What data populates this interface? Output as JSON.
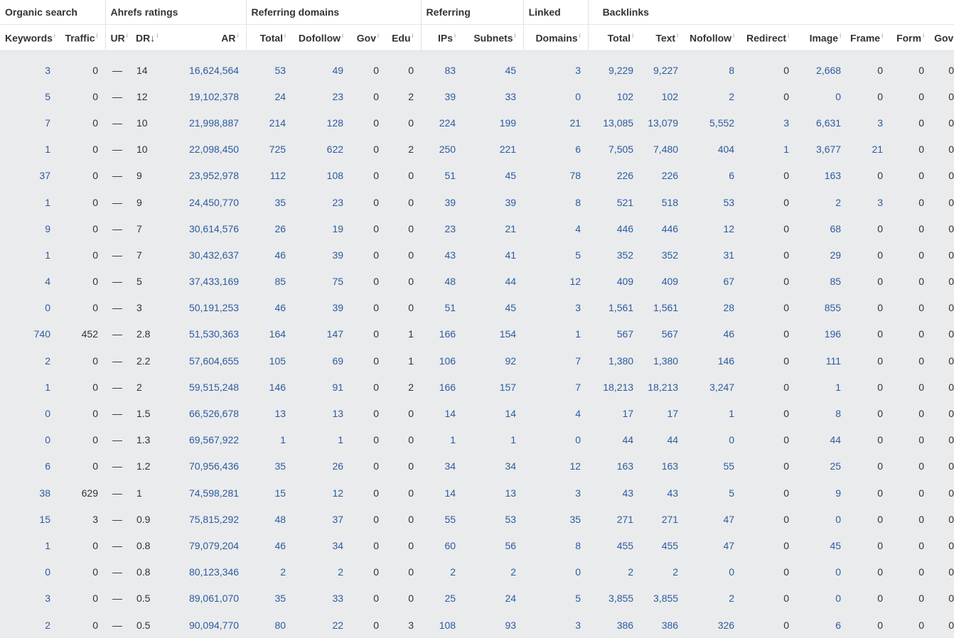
{
  "groups": {
    "organic": "Organic search",
    "ahrefs": "Ahrefs ratings",
    "refdomains": "Referring domains",
    "referring": "Referring",
    "linked": "Linked",
    "backlinks": "Backlinks"
  },
  "columns": {
    "keywords": "Keywords",
    "traffic": "Traffic",
    "ur": "UR",
    "dr": "DR",
    "dr_sort": "↓",
    "ar": "AR",
    "rd_total": "Total",
    "rd_dofollow": "Dofollow",
    "rd_gov": "Gov",
    "rd_edu": "Edu",
    "ips": "IPs",
    "subnets": "Subnets",
    "linked_domains": "Domains",
    "bl_total": "Total",
    "bl_text": "Text",
    "bl_nofollow": "Nofollow",
    "bl_redirect": "Redirect",
    "bl_image": "Image",
    "bl_frame": "Frame",
    "bl_form": "Form",
    "bl_gov": "Gov"
  },
  "info_glyph": "i",
  "rows": [
    {
      "keywords": "3",
      "traffic": "0",
      "ur": "—",
      "dr": "14",
      "ar": "16,624,564",
      "rd_total": "53",
      "rd_dofollow": "49",
      "rd_gov": "0",
      "rd_edu": "0",
      "ips": "83",
      "subnets": "45",
      "linked_domains": "3",
      "bl_total": "9,229",
      "bl_text": "9,227",
      "bl_nofollow": "8",
      "bl_redirect": "0",
      "bl_image": "2,668",
      "bl_frame": "0",
      "bl_form": "0",
      "bl_gov": "0"
    },
    {
      "keywords": "5",
      "traffic": "0",
      "ur": "—",
      "dr": "12",
      "ar": "19,102,378",
      "rd_total": "24",
      "rd_dofollow": "23",
      "rd_gov": "0",
      "rd_edu": "2",
      "ips": "39",
      "subnets": "33",
      "linked_domains": "0",
      "bl_total": "102",
      "bl_text": "102",
      "bl_nofollow": "2",
      "bl_redirect": "0",
      "bl_image": "0",
      "bl_frame": "0",
      "bl_form": "0",
      "bl_gov": "0"
    },
    {
      "keywords": "7",
      "traffic": "0",
      "ur": "—",
      "dr": "10",
      "ar": "21,998,887",
      "rd_total": "214",
      "rd_dofollow": "128",
      "rd_gov": "0",
      "rd_edu": "0",
      "ips": "224",
      "subnets": "199",
      "linked_domains": "21",
      "bl_total": "13,085",
      "bl_text": "13,079",
      "bl_nofollow": "5,552",
      "bl_redirect": "3",
      "bl_image": "6,631",
      "bl_frame": "3",
      "bl_form": "0",
      "bl_gov": "0"
    },
    {
      "keywords": "1",
      "traffic": "0",
      "ur": "—",
      "dr": "10",
      "ar": "22,098,450",
      "rd_total": "725",
      "rd_dofollow": "622",
      "rd_gov": "0",
      "rd_edu": "2",
      "ips": "250",
      "subnets": "221",
      "linked_domains": "6",
      "bl_total": "7,505",
      "bl_text": "7,480",
      "bl_nofollow": "404",
      "bl_redirect": "1",
      "bl_image": "3,677",
      "bl_frame": "21",
      "bl_form": "0",
      "bl_gov": "0"
    },
    {
      "keywords": "37",
      "traffic": "0",
      "ur": "—",
      "dr": "9",
      "ar": "23,952,978",
      "rd_total": "112",
      "rd_dofollow": "108",
      "rd_gov": "0",
      "rd_edu": "0",
      "ips": "51",
      "subnets": "45",
      "linked_domains": "78",
      "bl_total": "226",
      "bl_text": "226",
      "bl_nofollow": "6",
      "bl_redirect": "0",
      "bl_image": "163",
      "bl_frame": "0",
      "bl_form": "0",
      "bl_gov": "0"
    },
    {
      "keywords": "1",
      "traffic": "0",
      "ur": "—",
      "dr": "9",
      "ar": "24,450,770",
      "rd_total": "35",
      "rd_dofollow": "23",
      "rd_gov": "0",
      "rd_edu": "0",
      "ips": "39",
      "subnets": "39",
      "linked_domains": "8",
      "bl_total": "521",
      "bl_text": "518",
      "bl_nofollow": "53",
      "bl_redirect": "0",
      "bl_image": "2",
      "bl_frame": "3",
      "bl_form": "0",
      "bl_gov": "0"
    },
    {
      "keywords": "9",
      "traffic": "0",
      "ur": "—",
      "dr": "7",
      "ar": "30,614,576",
      "rd_total": "26",
      "rd_dofollow": "19",
      "rd_gov": "0",
      "rd_edu": "0",
      "ips": "23",
      "subnets": "21",
      "linked_domains": "4",
      "bl_total": "446",
      "bl_text": "446",
      "bl_nofollow": "12",
      "bl_redirect": "0",
      "bl_image": "68",
      "bl_frame": "0",
      "bl_form": "0",
      "bl_gov": "0"
    },
    {
      "keywords": "1",
      "traffic": "0",
      "ur": "—",
      "dr": "7",
      "ar": "30,432,637",
      "rd_total": "46",
      "rd_dofollow": "39",
      "rd_gov": "0",
      "rd_edu": "0",
      "ips": "43",
      "subnets": "41",
      "linked_domains": "5",
      "bl_total": "352",
      "bl_text": "352",
      "bl_nofollow": "31",
      "bl_redirect": "0",
      "bl_image": "29",
      "bl_frame": "0",
      "bl_form": "0",
      "bl_gov": "0"
    },
    {
      "keywords": "4",
      "traffic": "0",
      "ur": "—",
      "dr": "5",
      "ar": "37,433,169",
      "rd_total": "85",
      "rd_dofollow": "75",
      "rd_gov": "0",
      "rd_edu": "0",
      "ips": "48",
      "subnets": "44",
      "linked_domains": "12",
      "bl_total": "409",
      "bl_text": "409",
      "bl_nofollow": "67",
      "bl_redirect": "0",
      "bl_image": "85",
      "bl_frame": "0",
      "bl_form": "0",
      "bl_gov": "0"
    },
    {
      "keywords": "0",
      "traffic": "0",
      "ur": "—",
      "dr": "3",
      "ar": "50,191,253",
      "rd_total": "46",
      "rd_dofollow": "39",
      "rd_gov": "0",
      "rd_edu": "0",
      "ips": "51",
      "subnets": "45",
      "linked_domains": "3",
      "bl_total": "1,561",
      "bl_text": "1,561",
      "bl_nofollow": "28",
      "bl_redirect": "0",
      "bl_image": "855",
      "bl_frame": "0",
      "bl_form": "0",
      "bl_gov": "0"
    },
    {
      "keywords": "740",
      "traffic": "452",
      "ur": "—",
      "dr": "2.8",
      "ar": "51,530,363",
      "rd_total": "164",
      "rd_dofollow": "147",
      "rd_gov": "0",
      "rd_edu": "1",
      "ips": "166",
      "subnets": "154",
      "linked_domains": "1",
      "bl_total": "567",
      "bl_text": "567",
      "bl_nofollow": "46",
      "bl_redirect": "0",
      "bl_image": "196",
      "bl_frame": "0",
      "bl_form": "0",
      "bl_gov": "0"
    },
    {
      "keywords": "2",
      "traffic": "0",
      "ur": "—",
      "dr": "2.2",
      "ar": "57,604,655",
      "rd_total": "105",
      "rd_dofollow": "69",
      "rd_gov": "0",
      "rd_edu": "1",
      "ips": "106",
      "subnets": "92",
      "linked_domains": "7",
      "bl_total": "1,380",
      "bl_text": "1,380",
      "bl_nofollow": "146",
      "bl_redirect": "0",
      "bl_image": "111",
      "bl_frame": "0",
      "bl_form": "0",
      "bl_gov": "0"
    },
    {
      "keywords": "1",
      "traffic": "0",
      "ur": "—",
      "dr": "2",
      "ar": "59,515,248",
      "rd_total": "146",
      "rd_dofollow": "91",
      "rd_gov": "0",
      "rd_edu": "2",
      "ips": "166",
      "subnets": "157",
      "linked_domains": "7",
      "bl_total": "18,213",
      "bl_text": "18,213",
      "bl_nofollow": "3,247",
      "bl_redirect": "0",
      "bl_image": "1",
      "bl_frame": "0",
      "bl_form": "0",
      "bl_gov": "0"
    },
    {
      "keywords": "0",
      "traffic": "0",
      "ur": "—",
      "dr": "1.5",
      "ar": "66,526,678",
      "rd_total": "13",
      "rd_dofollow": "13",
      "rd_gov": "0",
      "rd_edu": "0",
      "ips": "14",
      "subnets": "14",
      "linked_domains": "4",
      "bl_total": "17",
      "bl_text": "17",
      "bl_nofollow": "1",
      "bl_redirect": "0",
      "bl_image": "8",
      "bl_frame": "0",
      "bl_form": "0",
      "bl_gov": "0"
    },
    {
      "keywords": "0",
      "traffic": "0",
      "ur": "—",
      "dr": "1.3",
      "ar": "69,567,922",
      "rd_total": "1",
      "rd_dofollow": "1",
      "rd_gov": "0",
      "rd_edu": "0",
      "ips": "1",
      "subnets": "1",
      "linked_domains": "0",
      "bl_total": "44",
      "bl_text": "44",
      "bl_nofollow": "0",
      "bl_redirect": "0",
      "bl_image": "44",
      "bl_frame": "0",
      "bl_form": "0",
      "bl_gov": "0"
    },
    {
      "keywords": "6",
      "traffic": "0",
      "ur": "—",
      "dr": "1.2",
      "ar": "70,956,436",
      "rd_total": "35",
      "rd_dofollow": "26",
      "rd_gov": "0",
      "rd_edu": "0",
      "ips": "34",
      "subnets": "34",
      "linked_domains": "12",
      "bl_total": "163",
      "bl_text": "163",
      "bl_nofollow": "55",
      "bl_redirect": "0",
      "bl_image": "25",
      "bl_frame": "0",
      "bl_form": "0",
      "bl_gov": "0"
    },
    {
      "keywords": "38",
      "traffic": "629",
      "ur": "—",
      "dr": "1",
      "ar": "74,598,281",
      "rd_total": "15",
      "rd_dofollow": "12",
      "rd_gov": "0",
      "rd_edu": "0",
      "ips": "14",
      "subnets": "13",
      "linked_domains": "3",
      "bl_total": "43",
      "bl_text": "43",
      "bl_nofollow": "5",
      "bl_redirect": "0",
      "bl_image": "9",
      "bl_frame": "0",
      "bl_form": "0",
      "bl_gov": "0"
    },
    {
      "keywords": "15",
      "traffic": "3",
      "ur": "—",
      "dr": "0.9",
      "ar": "75,815,292",
      "rd_total": "48",
      "rd_dofollow": "37",
      "rd_gov": "0",
      "rd_edu": "0",
      "ips": "55",
      "subnets": "53",
      "linked_domains": "35",
      "bl_total": "271",
      "bl_text": "271",
      "bl_nofollow": "47",
      "bl_redirect": "0",
      "bl_image": "0",
      "bl_frame": "0",
      "bl_form": "0",
      "bl_gov": "0"
    },
    {
      "keywords": "1",
      "traffic": "0",
      "ur": "—",
      "dr": "0.8",
      "ar": "79,079,204",
      "rd_total": "46",
      "rd_dofollow": "34",
      "rd_gov": "0",
      "rd_edu": "0",
      "ips": "60",
      "subnets": "56",
      "linked_domains": "8",
      "bl_total": "455",
      "bl_text": "455",
      "bl_nofollow": "47",
      "bl_redirect": "0",
      "bl_image": "45",
      "bl_frame": "0",
      "bl_form": "0",
      "bl_gov": "0"
    },
    {
      "keywords": "0",
      "traffic": "0",
      "ur": "—",
      "dr": "0.8",
      "ar": "80,123,346",
      "rd_total": "2",
      "rd_dofollow": "2",
      "rd_gov": "0",
      "rd_edu": "0",
      "ips": "2",
      "subnets": "2",
      "linked_domains": "0",
      "bl_total": "2",
      "bl_text": "2",
      "bl_nofollow": "0",
      "bl_redirect": "0",
      "bl_image": "0",
      "bl_frame": "0",
      "bl_form": "0",
      "bl_gov": "0"
    },
    {
      "keywords": "3",
      "traffic": "0",
      "ur": "—",
      "dr": "0.5",
      "ar": "89,061,070",
      "rd_total": "35",
      "rd_dofollow": "33",
      "rd_gov": "0",
      "rd_edu": "0",
      "ips": "25",
      "subnets": "24",
      "linked_domains": "5",
      "bl_total": "3,855",
      "bl_text": "3,855",
      "bl_nofollow": "2",
      "bl_redirect": "0",
      "bl_image": "0",
      "bl_frame": "0",
      "bl_form": "0",
      "bl_gov": "0"
    },
    {
      "keywords": "2",
      "traffic": "0",
      "ur": "—",
      "dr": "0.5",
      "ar": "90,094,770",
      "rd_total": "80",
      "rd_dofollow": "22",
      "rd_gov": "0",
      "rd_edu": "3",
      "ips": "108",
      "subnets": "93",
      "linked_domains": "3",
      "bl_total": "386",
      "bl_text": "386",
      "bl_nofollow": "326",
      "bl_redirect": "0",
      "bl_image": "6",
      "bl_frame": "0",
      "bl_form": "0",
      "bl_gov": "0"
    }
  ]
}
